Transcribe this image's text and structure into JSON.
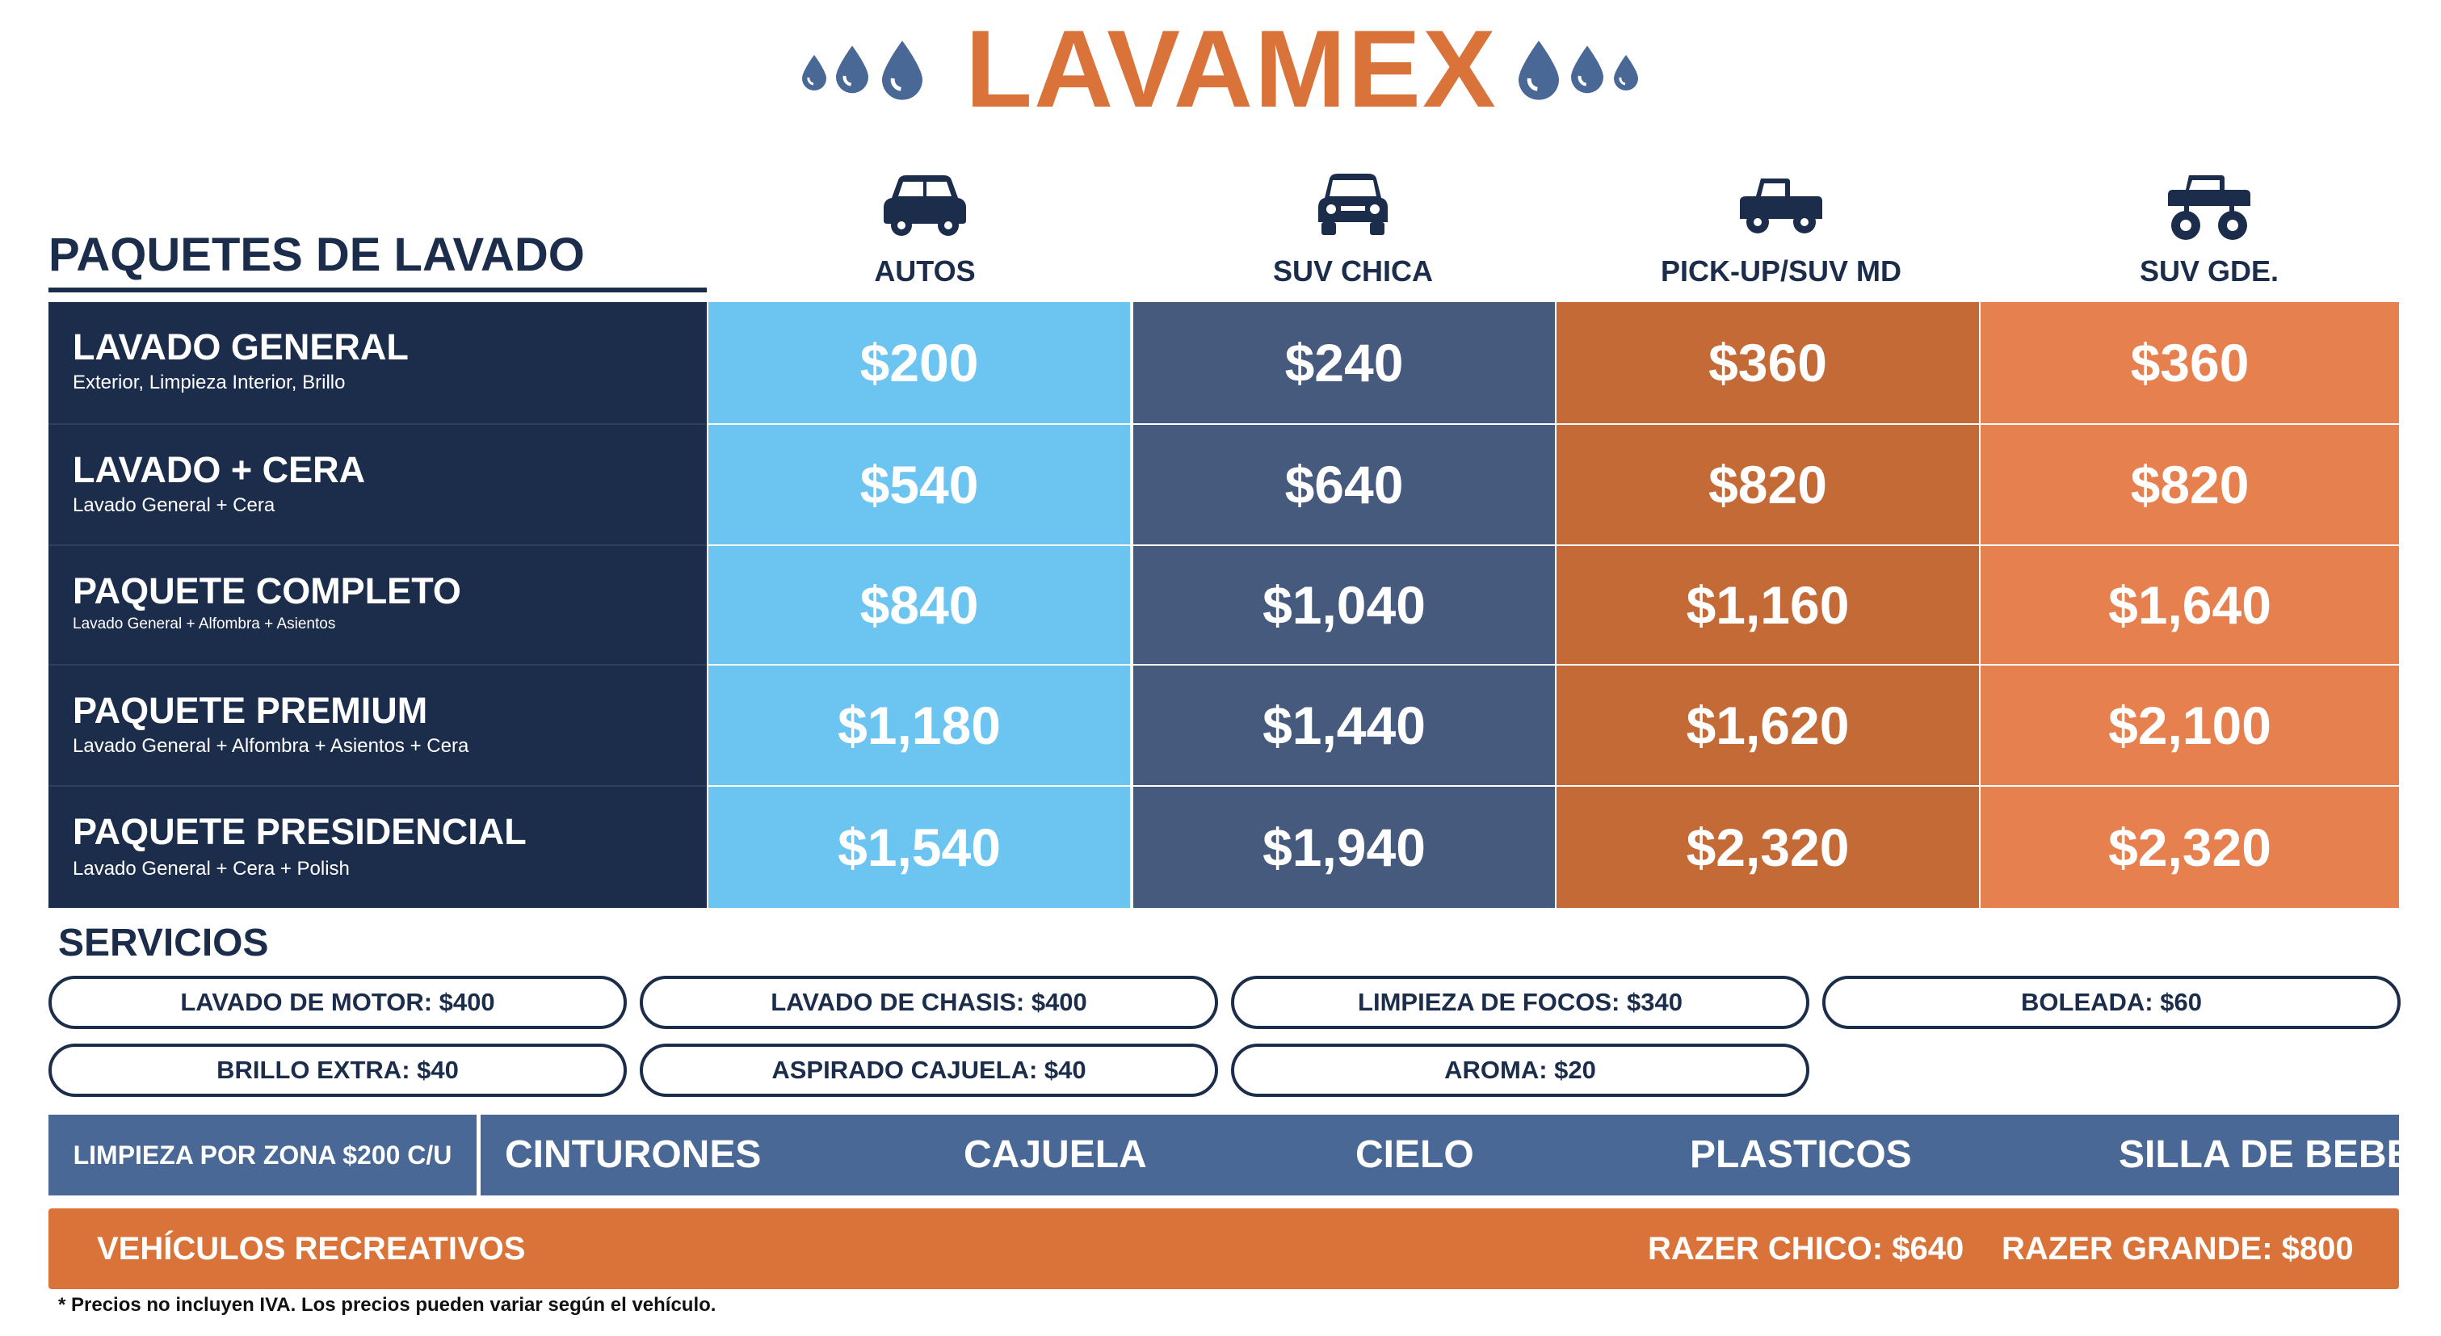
{
  "brand": {
    "title": "LAVAMEX",
    "accent_color": "#d9733a",
    "drop_color": "#4a6895",
    "decor_icons": [
      "water-drop-icon",
      "water-drop-icon",
      "water-drop-icon",
      "water-drop-icon",
      "water-drop-icon",
      "water-drop-icon"
    ]
  },
  "table": {
    "section_title": "PAQUETES DE LAVADO",
    "columns": [
      {
        "label": "AUTOS",
        "icon": "car-icon",
        "color": "#6cc4f1"
      },
      {
        "label": "SUV CHICA",
        "icon": "suv-icon",
        "color": "#465a7e"
      },
      {
        "label": "PICK-UP/SUV MD",
        "icon": "pickup-truck-icon",
        "color": "#c36a36"
      },
      {
        "label": "SUV GDE.",
        "icon": "monster-truck-icon",
        "color": "#e6804e"
      }
    ],
    "packages": [
      {
        "name": "LAVADO GENERAL",
        "description": "Exterior, Limpieza Interior, Brillo",
        "prices": [
          "$200",
          "$240",
          "$360",
          "$360"
        ]
      },
      {
        "name": "LAVADO + CERA",
        "description": "Lavado General + Cera",
        "prices": [
          "$540",
          "$640",
          "$820",
          "$820"
        ]
      },
      {
        "name": "PAQUETE COMPLETO",
        "description": "Lavado General + Alfombra + Asientos",
        "prices": [
          "$840",
          "$1,040",
          "$1,160",
          "$1,640"
        ]
      },
      {
        "name": "PAQUETE PREMIUM",
        "description": "Lavado General + Alfombra + Asientos + Cera",
        "prices": [
          "$1,180",
          "$1,440",
          "$1,620",
          "$2,100"
        ]
      },
      {
        "name": "PAQUETE PRESIDENCIAL",
        "description": "Lavado General + Cera + Polish",
        "prices": [
          "$1,540",
          "$1,940",
          "$2,320",
          "$2,320"
        ]
      }
    ]
  },
  "services": {
    "title": "SERVICIOS",
    "items": [
      "LAVADO DE MOTOR: $400",
      "LAVADO DE CHASIS: $400",
      "LIMPIEZA DE FOCOS: $340",
      "BOLEADA: $60",
      "BRILLO EXTRA: $40",
      "ASPIRADO CAJUELA: $40",
      "AROMA: $20"
    ]
  },
  "zones": {
    "label": "LIMPIEZA POR ZONA $200 C/U",
    "items": [
      "CINTURONES",
      "CAJUELA",
      "CIELO",
      "PLASTICOS",
      "SILLA DE BEBE"
    ],
    "color": "#4a6895"
  },
  "recreational": {
    "label": "VEHÍCULOS RECREATIVOS",
    "items": [
      "RAZER CHICO: $640",
      "RAZER GRANDE: $800"
    ],
    "color": "#d9733a"
  },
  "footnote": "* Precios no incluyen IVA. Los precios pueden variar según el vehículo."
}
